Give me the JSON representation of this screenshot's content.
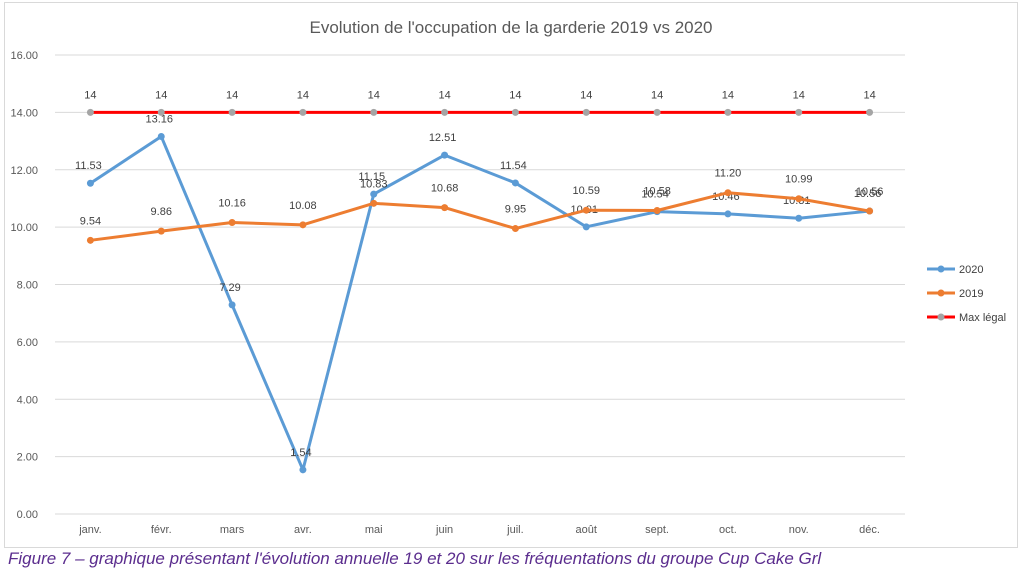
{
  "chart_data": {
    "type": "line",
    "title": "Evolution de l'occupation de la garderie 2019 vs 2020",
    "xlabel": "",
    "ylabel": "",
    "categories": [
      "janv.",
      "févr.",
      "mars",
      "avr.",
      "mai",
      "juin",
      "juil.",
      "août",
      "sept.",
      "oct.",
      "nov.",
      "déc."
    ],
    "ylim": [
      0,
      16
    ],
    "yticks": [
      "0.00",
      "2.00",
      "4.00",
      "6.00",
      "8.00",
      "10.00",
      "12.00",
      "14.00",
      "16.00"
    ],
    "grid": true,
    "legend_position": "right",
    "series": [
      {
        "name": "2020",
        "color": "#5b9bd5",
        "values": [
          11.53,
          13.16,
          7.29,
          1.54,
          11.15,
          12.51,
          11.54,
          10.01,
          10.54,
          10.46,
          10.31,
          10.56
        ],
        "labels": [
          "11.53",
          "13.16",
          "7.29",
          "1.54",
          "11.15",
          "12.51",
          "11.54",
          "10.01",
          "10.54",
          "10.46",
          "10.31",
          "10.56"
        ]
      },
      {
        "name": "2019",
        "color": "#ed7d31",
        "values": [
          9.54,
          9.86,
          10.16,
          10.08,
          10.83,
          10.68,
          9.95,
          10.59,
          10.58,
          11.2,
          10.99,
          10.56
        ],
        "labels": [
          "9.54",
          "9.86",
          "10.16",
          "10.08",
          "10.83",
          "10.68",
          "9.95",
          "10.59",
          "10.58",
          "11.20",
          "10.99",
          "10.56"
        ]
      },
      {
        "name": "Max légal",
        "color": "#ff0000",
        "marker_color": "#a5a5a5",
        "values": [
          14,
          14,
          14,
          14,
          14,
          14,
          14,
          14,
          14,
          14,
          14,
          14
        ],
        "labels": [
          "14",
          "14",
          "14",
          "14",
          "14",
          "14",
          "14",
          "14",
          "14",
          "14",
          "14",
          "14"
        ]
      }
    ]
  },
  "caption": "Figure 7 – graphique présentant l'évolution annuelle 19 et 20 sur les fréquentations du groupe Cup Cake Grl"
}
